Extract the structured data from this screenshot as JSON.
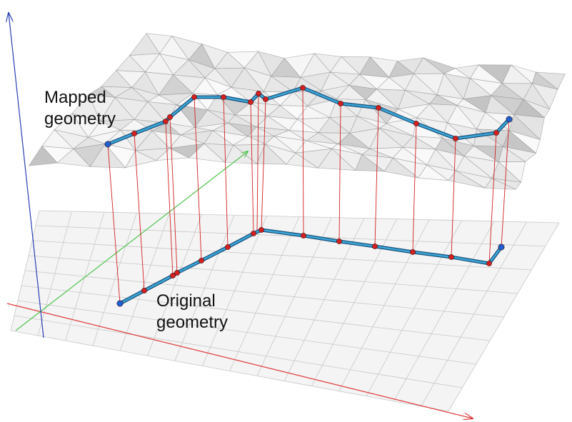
{
  "labels": {
    "mapped_line1": "Mapped",
    "mapped_line2": "geometry",
    "original_line1": "Original",
    "original_line2": "geometry"
  },
  "colors": {
    "x_axis": "#e03a3a",
    "y_axis": "#4cc44c",
    "z_axis": "#2a3fb5",
    "grid_fill": "#f4f4f4",
    "grid_line": "#c8c8c8",
    "surface_fill": "#e6e6e6",
    "surface_line": "#9a9a9a",
    "geometry_line": "#39a6d6",
    "geometry_outline": "#1b4f7a",
    "vertex": "#d42020",
    "endpoint": "#1f5fd0",
    "projection_line": "#d42020"
  },
  "icons": {
    "axis_arrow": "arrowhead"
  }
}
